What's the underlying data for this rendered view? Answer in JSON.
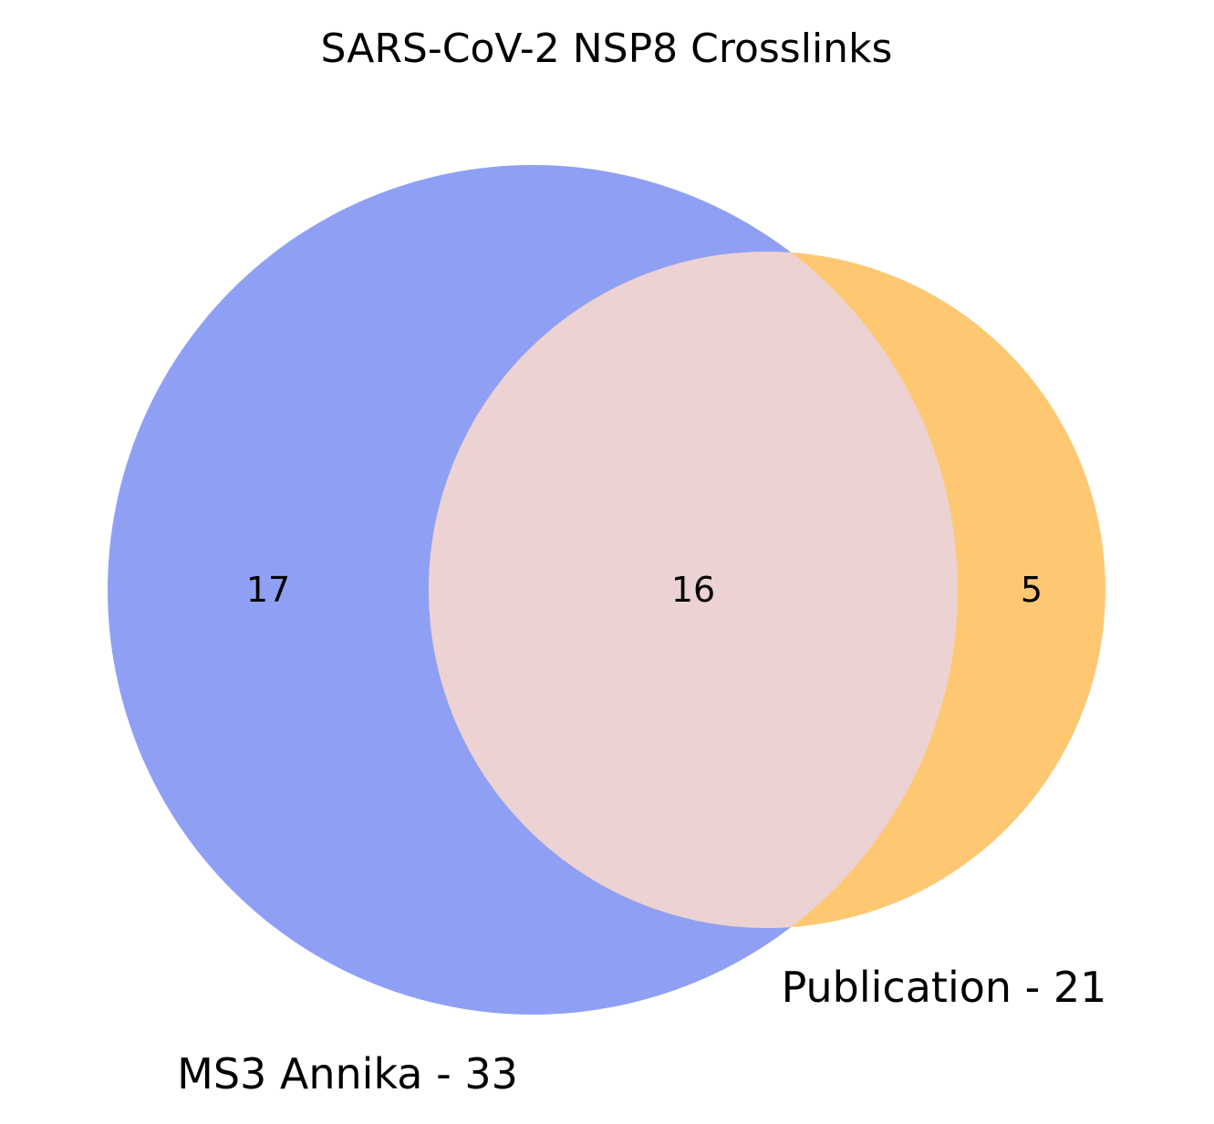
{
  "title": "SARS-CoV-2 NSP8 Crosslinks",
  "chart_data": {
    "type": "venn",
    "title": "SARS-CoV-2 NSP8 Crosslinks",
    "sets": [
      {
        "label": "MS3 Annika - 33",
        "size": 33,
        "only": 17,
        "color": "#8fa0f4"
      },
      {
        "label": "Publication - 21",
        "size": 21,
        "only": 5,
        "color": "#fec873"
      }
    ],
    "intersection": {
      "count": 16,
      "color": "#ecd2d3"
    }
  },
  "labels": {
    "a_only": "17",
    "intersection": "16",
    "b_only": "5",
    "set_a": "MS3 Annika - 33",
    "set_b": "Publication - 21"
  }
}
